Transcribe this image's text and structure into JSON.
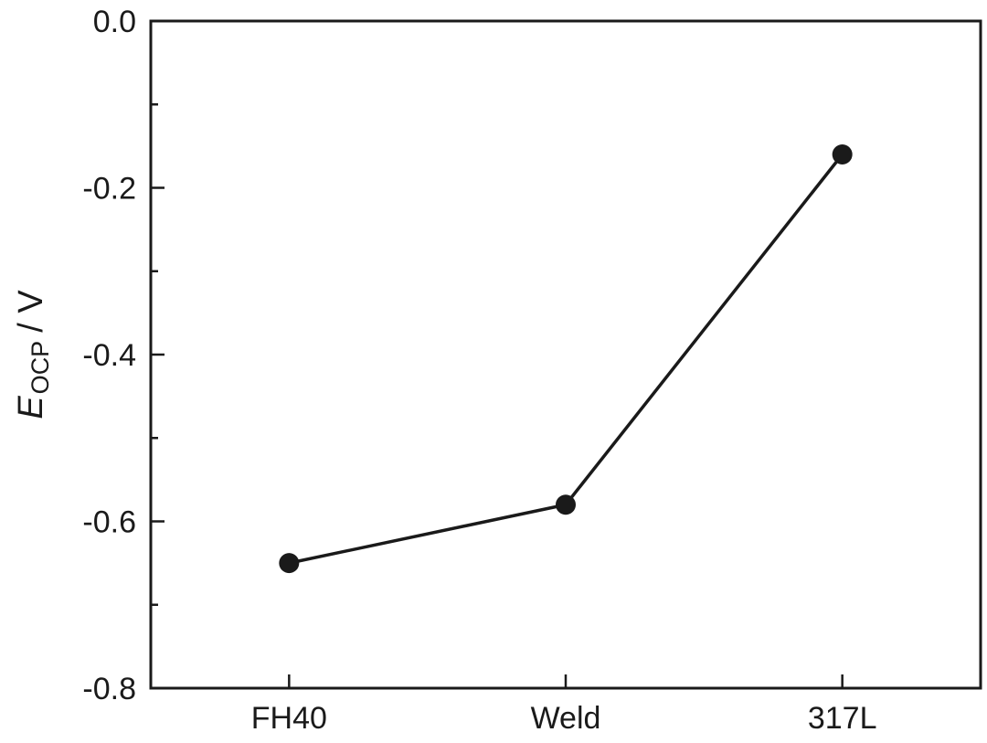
{
  "chart_data": {
    "type": "line",
    "categories": [
      "FH40",
      "Weld",
      "317L"
    ],
    "series": [
      {
        "name": "E_OCP",
        "values": [
          -0.65,
          -0.58,
          -0.16
        ]
      }
    ],
    "title": "",
    "xlabel": "",
    "ylabel": "E_OCP / V",
    "ylabel_parts": {
      "symbol": "E",
      "subscript": "OCP",
      "unit": "/ V"
    },
    "ylim": [
      -0.8,
      0.0
    ],
    "yticks": [
      {
        "value": 0.0,
        "label": "0.0"
      },
      {
        "value": -0.2,
        "label": "-0.2"
      },
      {
        "value": -0.4,
        "label": "-0.4"
      },
      {
        "value": -0.6,
        "label": "-0.6"
      },
      {
        "value": -0.8,
        "label": "-0.8"
      }
    ],
    "ytick_step": 0.2,
    "minor_ytick_step": 0.1,
    "grid": false,
    "legend": false,
    "marker": "filled-circle",
    "marker_radius": 11,
    "line_width": 3.5,
    "line_color": "#1a1a1a",
    "marker_color": "#1a1a1a"
  },
  "colors": {
    "ink": "#1a1a1a",
    "background": "#ffffff"
  }
}
